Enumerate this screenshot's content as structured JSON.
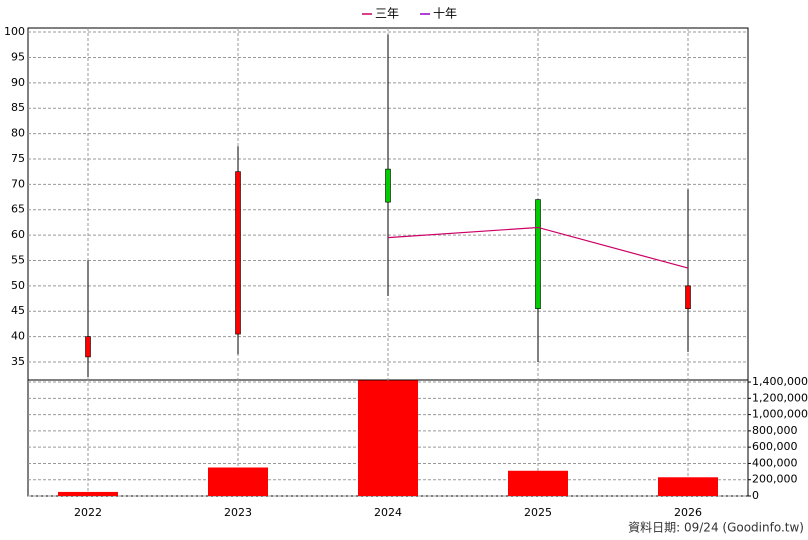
{
  "chart_data": [
    {
      "type": "candlestick",
      "categories": [
        "2022",
        "2023",
        "2024",
        "2025",
        "2026"
      ],
      "open": [
        36,
        40.5,
        73,
        67,
        45.5
      ],
      "close": [
        40,
        72.5,
        66.5,
        45.5,
        50
      ],
      "high": [
        55,
        77.5,
        99.5,
        67,
        69
      ],
      "low": [
        32,
        36.5,
        48,
        35,
        37
      ],
      "up_color": "#ff0000",
      "down_color": "#00cc00",
      "series": [
        {
          "name": "三年",
          "color": "#cc0066",
          "values": [
            null,
            null,
            59.5,
            61.5,
            53.5
          ]
        },
        {
          "name": "十年",
          "color": "#9900cc",
          "values": [
            null,
            null,
            null,
            null,
            null
          ]
        }
      ],
      "ylim": [
        31.45,
        100.8
      ],
      "yticks": [
        35,
        40,
        45,
        50,
        55,
        60,
        65,
        70,
        75,
        80,
        85,
        90,
        95,
        100
      ],
      "grid": true
    },
    {
      "type": "bar",
      "values": [
        50000,
        350000,
        1420000,
        310000,
        230000
      ],
      "color": "#ff0000",
      "ylim": [
        0,
        1425000
      ],
      "yticks": [
        0,
        {
          "value": 200000,
          "label": "200,000"
        },
        {
          "value": 400000,
          "label": "400,000"
        },
        {
          "value": 600000,
          "label": "600,000"
        },
        {
          "value": 800000,
          "label": "800,000"
        },
        {
          "value": 1000000,
          "label": "1,000,000"
        },
        {
          "value": 1200000,
          "label": "1,200,000"
        },
        {
          "value": 1400000,
          "label": "1,400,000"
        }
      ],
      "grid": true
    }
  ],
  "footer": "資料日期: 09/24  (Goodinfo.tw)"
}
